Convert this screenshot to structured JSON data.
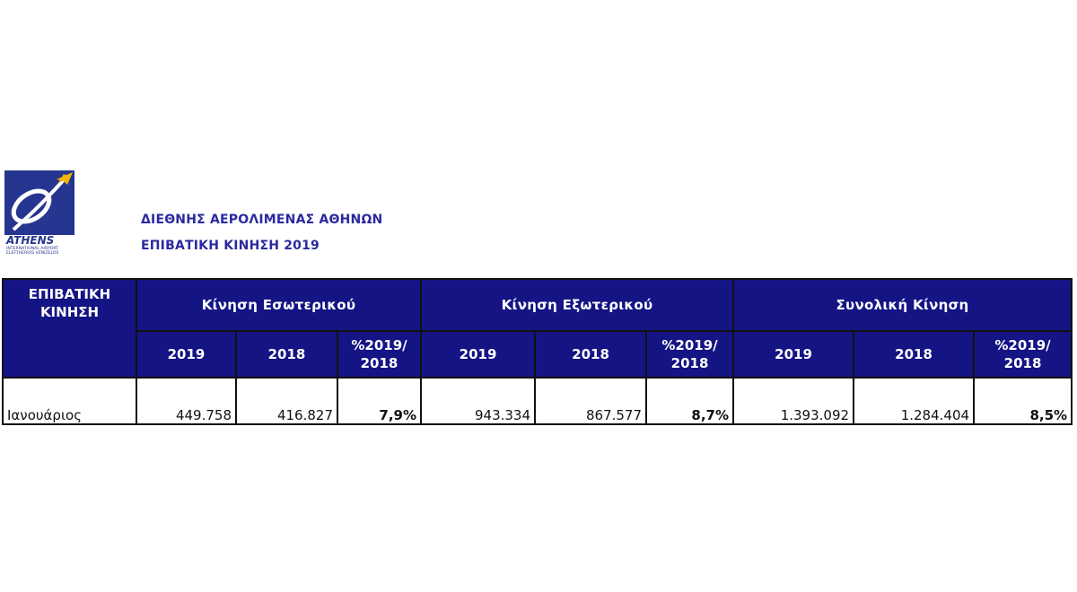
{
  "logo": {
    "brand": "ATHENS",
    "line1": "INTERNATIONAL AIRPORT",
    "line2": "ELEFTHERIOS VENIZELOS"
  },
  "headings": {
    "title": "ΔΙΕΘΝΗΣ ΑΕΡΟΛΙΜΕΝΑΣ ΑΘΗΝΩΝ",
    "subtitle": "ΕΠΙΒΑΤΙΚΗ ΚΙΝΗΣΗ 2019"
  },
  "table": {
    "corner": "ΕΠΙΒΑΤΙΚΗ ΚΙΝΗΣΗ",
    "groups": [
      "Κίνηση Εσωτερικού",
      "Κίνηση Εξωτερικού",
      "Συνολική Κίνηση"
    ],
    "subheaders": [
      "2019",
      "2018",
      "%2019/ 2018",
      "2019",
      "2018",
      "%2019/ 2018",
      "2019",
      "2018",
      "%2019/ 2018"
    ],
    "rows": [
      {
        "label": "Ιανουάριος",
        "cells": [
          "449.758",
          "416.827",
          "7,9%",
          "943.334",
          "867.577",
          "8,7%",
          "1.393.092",
          "1.284.404",
          "8,5%"
        ]
      }
    ]
  },
  "colors": {
    "header_bg": "#141485",
    "heading_text": "#2a2aa0",
    "logo_blue": "#26358f"
  }
}
